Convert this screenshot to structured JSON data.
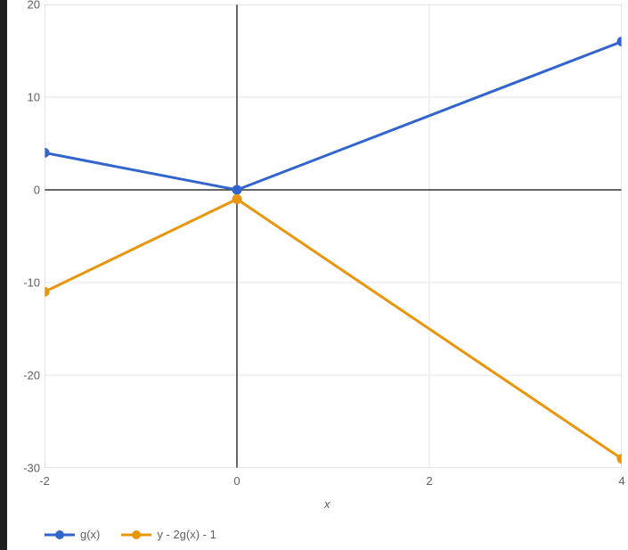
{
  "chart": {
    "type": "line",
    "background_color": "#ffffff",
    "grid_color": "#e6e6e6",
    "axis_color": "#333333",
    "border_color": "#cccccc",
    "tick_label_color": "#5f5f5f",
    "tick_fontsize": 13,
    "sidebar_color": "#1f1f1f",
    "x_axis_title": "x",
    "x_axis_title_fontstyle": "italic",
    "xlim": [
      -2,
      4
    ],
    "ylim": [
      -30,
      20
    ],
    "x_ticks": [
      -2,
      0,
      2,
      4
    ],
    "y_ticks": [
      -30,
      -20,
      -10,
      0,
      10,
      20
    ],
    "x_tick_labels": [
      "-2",
      "0",
      "2",
      "4"
    ],
    "y_tick_labels": [
      "-30",
      "-20",
      "-10",
      "0",
      "10",
      "20"
    ],
    "line_width": 3,
    "marker_radius": 5.5,
    "series": [
      {
        "label": "g(x)",
        "color": "#3265cb",
        "x": [
          -2,
          -1,
          0,
          1,
          2,
          3,
          4
        ],
        "y": [
          4,
          2,
          0,
          4,
          8,
          12,
          16
        ],
        "visible_markers_x": [
          -2,
          0,
          4
        ]
      },
      {
        "label": "y - 2g(x) - 1",
        "color": "#e8960c",
        "x": [
          -2,
          -1,
          0,
          1,
          2,
          3,
          4
        ],
        "y": [
          -11,
          -6,
          -1,
          -8,
          -15,
          -22,
          -29
        ],
        "visible_markers_x": [
          -2,
          0,
          4
        ]
      }
    ],
    "legend": {
      "position": "bottom-left",
      "items": [
        {
          "label": "g(x)",
          "color": "#3265cb"
        },
        {
          "label": "y - 2g(x) - 1",
          "color": "#e8960c"
        }
      ]
    }
  }
}
